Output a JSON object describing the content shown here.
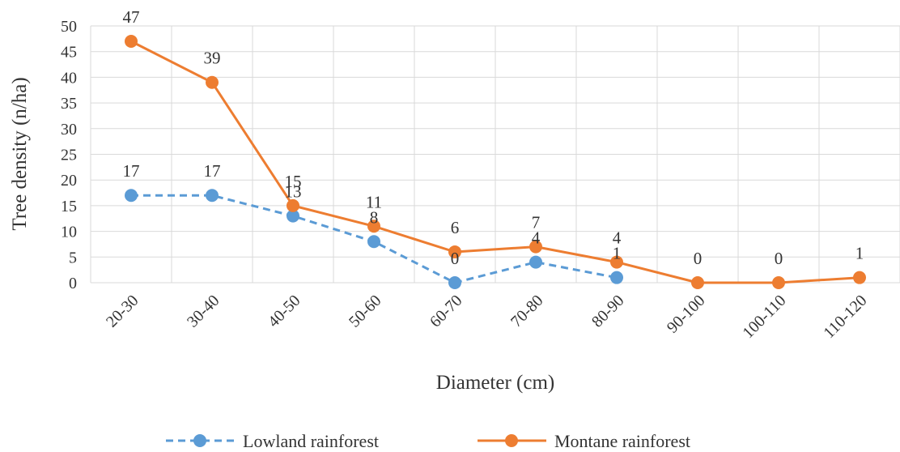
{
  "chart_data": {
    "type": "line",
    "title": "",
    "xlabel": "Diameter (cm)",
    "ylabel": "Tree density (n/ha)",
    "categories": [
      "20-30",
      "30-40",
      "40-50",
      "50-60",
      "60-70",
      "70-80",
      "80-90",
      "90-100",
      "100-110",
      "110-120"
    ],
    "ylim": [
      0,
      50
    ],
    "yticks": [
      0,
      5,
      10,
      15,
      20,
      25,
      30,
      35,
      40,
      45,
      50
    ],
    "grid": true,
    "legend_position": "bottom",
    "series": [
      {
        "name": "Lowland rainforest",
        "values": [
          17,
          17,
          13,
          8,
          0,
          4,
          1,
          null,
          null,
          null
        ],
        "color": "#5b9bd5",
        "line_style": "dashed",
        "marker": "circle"
      },
      {
        "name": "Montane rainforest",
        "values": [
          47,
          39,
          15,
          11,
          6,
          7,
          4,
          0,
          0,
          1
        ],
        "color": "#ed7d31",
        "line_style": "solid",
        "marker": "circle"
      }
    ]
  }
}
